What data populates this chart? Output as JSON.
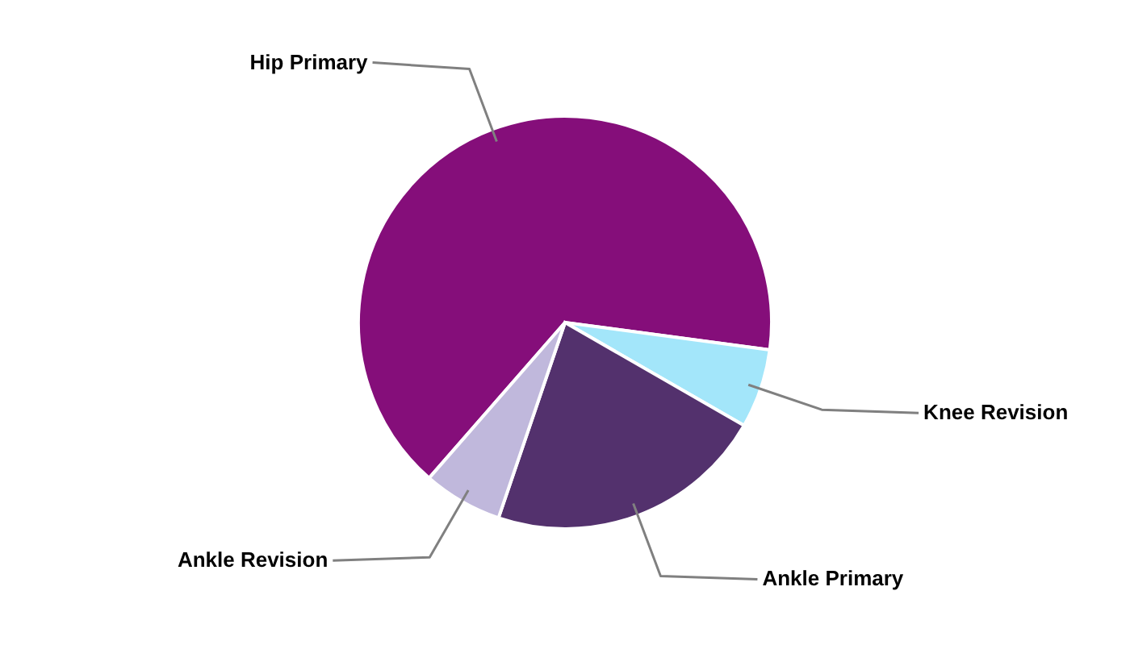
{
  "chart_data": {
    "type": "pie",
    "categories": [
      "Hip Primary",
      "Knee Revision",
      "Ankle Primary",
      "Ankle Revision"
    ],
    "values": [
      65.7,
      6.2,
      21.9,
      6.2
    ],
    "colors": [
      "#850e7a",
      "#a3e6fa",
      "#53316d",
      "#c0b8dc"
    ]
  }
}
